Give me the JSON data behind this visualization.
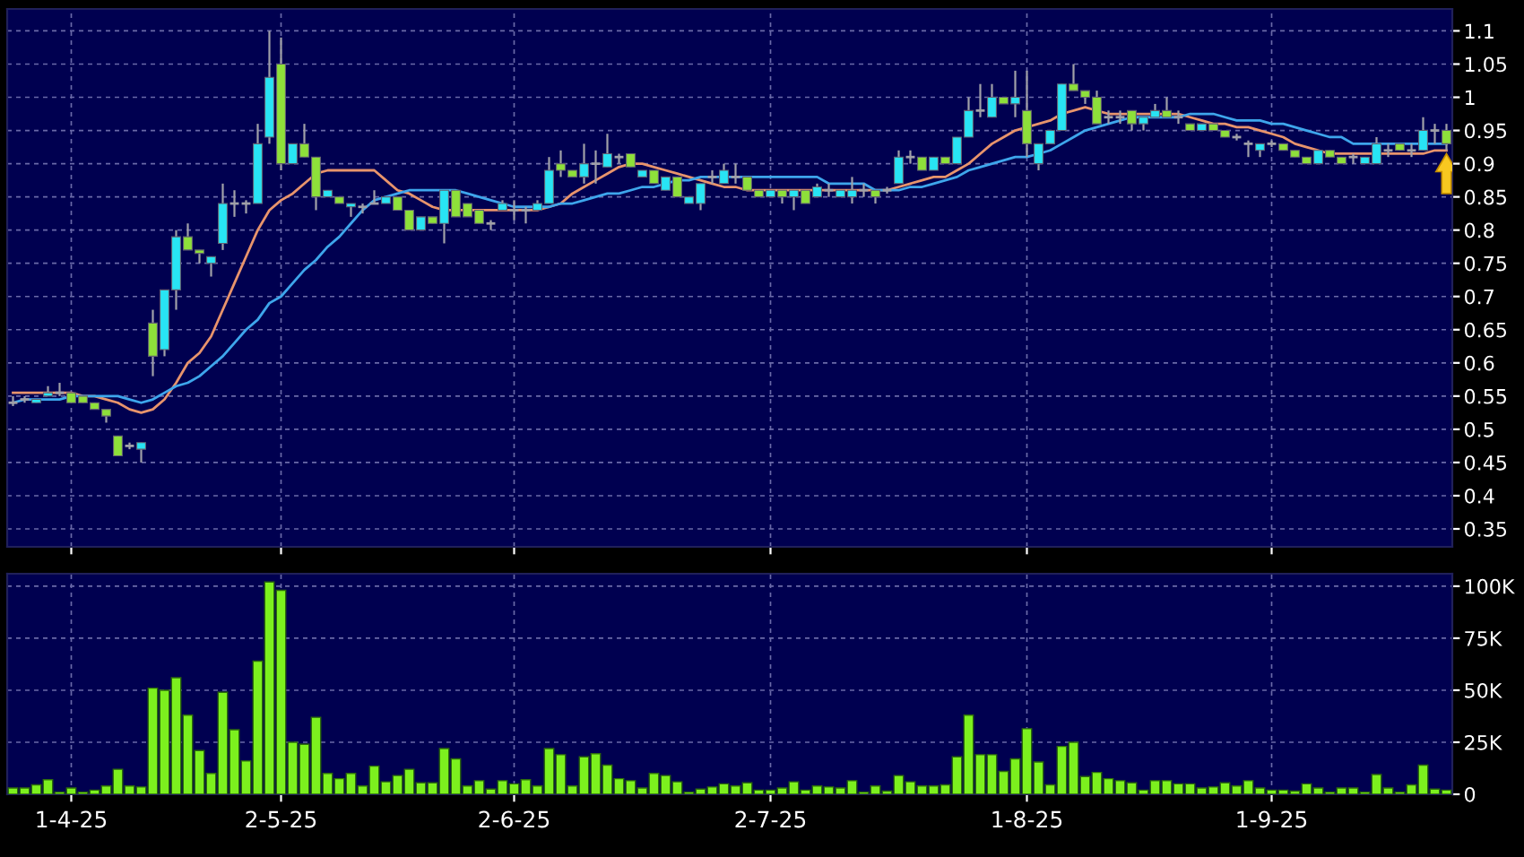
{
  "chart_data": [
    {
      "type": "candlestick",
      "ohlc": [
        [
          0.54,
          0.55,
          0.535,
          0.54
        ],
        [
          0.545,
          0.55,
          0.54,
          0.545
        ],
        [
          0.54,
          0.545,
          0.54,
          0.545
        ],
        [
          0.55,
          0.565,
          0.55,
          0.555
        ],
        [
          0.555,
          0.57,
          0.55,
          0.555
        ],
        [
          0.555,
          0.555,
          0.54,
          0.54
        ],
        [
          0.55,
          0.55,
          0.54,
          0.54
        ],
        [
          0.54,
          0.54,
          0.53,
          0.53
        ],
        [
          0.53,
          0.53,
          0.51,
          0.52
        ],
        [
          0.49,
          0.49,
          0.46,
          0.46
        ],
        [
          0.475,
          0.48,
          0.47,
          0.475
        ],
        [
          0.47,
          0.48,
          0.45,
          0.48
        ],
        [
          0.66,
          0.68,
          0.58,
          0.61
        ],
        [
          0.62,
          0.71,
          0.61,
          0.71
        ],
        [
          0.71,
          0.8,
          0.68,
          0.79
        ],
        [
          0.79,
          0.81,
          0.77,
          0.77
        ],
        [
          0.77,
          0.77,
          0.75,
          0.765
        ],
        [
          0.75,
          0.76,
          0.73,
          0.76
        ],
        [
          0.78,
          0.87,
          0.77,
          0.84
        ],
        [
          0.84,
          0.86,
          0.82,
          0.84
        ],
        [
          0.84,
          0.845,
          0.825,
          0.84
        ],
        [
          0.84,
          0.96,
          0.84,
          0.93
        ],
        [
          0.94,
          1.1,
          0.93,
          1.03
        ],
        [
          1.05,
          1.09,
          0.89,
          0.9
        ],
        [
          0.9,
          0.93,
          0.9,
          0.93
        ],
        [
          0.93,
          0.96,
          0.91,
          0.91
        ],
        [
          0.91,
          0.91,
          0.83,
          0.85
        ],
        [
          0.85,
          0.86,
          0.85,
          0.86
        ],
        [
          0.85,
          0.85,
          0.84,
          0.84
        ],
        [
          0.835,
          0.84,
          0.82,
          0.84
        ],
        [
          0.835,
          0.84,
          0.825,
          0.835
        ],
        [
          0.84,
          0.86,
          0.84,
          0.84
        ],
        [
          0.84,
          0.85,
          0.84,
          0.85
        ],
        [
          0.85,
          0.85,
          0.83,
          0.83
        ],
        [
          0.83,
          0.83,
          0.8,
          0.8
        ],
        [
          0.8,
          0.82,
          0.8,
          0.82
        ],
        [
          0.82,
          0.82,
          0.81,
          0.81
        ],
        [
          0.81,
          0.86,
          0.78,
          0.86
        ],
        [
          0.86,
          0.86,
          0.82,
          0.82
        ],
        [
          0.84,
          0.84,
          0.82,
          0.82
        ],
        [
          0.83,
          0.83,
          0.81,
          0.81
        ],
        [
          0.81,
          0.815,
          0.8,
          0.81
        ],
        [
          0.83,
          0.845,
          0.83,
          0.84
        ],
        [
          0.83,
          0.845,
          0.815,
          0.83
        ],
        [
          0.83,
          0.835,
          0.81,
          0.83
        ],
        [
          0.83,
          0.845,
          0.83,
          0.84
        ],
        [
          0.84,
          0.91,
          0.84,
          0.89
        ],
        [
          0.9,
          0.92,
          0.88,
          0.89
        ],
        [
          0.89,
          0.89,
          0.88,
          0.88
        ],
        [
          0.88,
          0.93,
          0.87,
          0.9
        ],
        [
          0.9,
          0.92,
          0.87,
          0.9
        ],
        [
          0.895,
          0.945,
          0.895,
          0.915
        ],
        [
          0.91,
          0.915,
          0.9,
          0.91
        ],
        [
          0.915,
          0.915,
          0.895,
          0.895
        ],
        [
          0.88,
          0.89,
          0.88,
          0.89
        ],
        [
          0.89,
          0.89,
          0.87,
          0.87
        ],
        [
          0.86,
          0.88,
          0.86,
          0.88
        ],
        [
          0.88,
          0.88,
          0.85,
          0.85
        ],
        [
          0.84,
          0.85,
          0.84,
          0.85
        ],
        [
          0.84,
          0.87,
          0.83,
          0.87
        ],
        [
          0.88,
          0.89,
          0.87,
          0.88
        ],
        [
          0.87,
          0.9,
          0.87,
          0.89
        ],
        [
          0.88,
          0.9,
          0.87,
          0.88
        ],
        [
          0.88,
          0.88,
          0.86,
          0.86
        ],
        [
          0.86,
          0.86,
          0.85,
          0.85
        ],
        [
          0.85,
          0.86,
          0.85,
          0.86
        ],
        [
          0.86,
          0.86,
          0.84,
          0.85
        ],
        [
          0.85,
          0.86,
          0.83,
          0.86
        ],
        [
          0.86,
          0.86,
          0.84,
          0.84
        ],
        [
          0.85,
          0.87,
          0.85,
          0.865
        ],
        [
          0.86,
          0.87,
          0.85,
          0.86
        ],
        [
          0.85,
          0.86,
          0.85,
          0.86
        ],
        [
          0.85,
          0.88,
          0.84,
          0.86
        ],
        [
          0.86,
          0.87,
          0.85,
          0.86
        ],
        [
          0.86,
          0.86,
          0.84,
          0.85
        ],
        [
          0.86,
          0.865,
          0.855,
          0.86
        ],
        [
          0.87,
          0.92,
          0.87,
          0.91
        ],
        [
          0.91,
          0.92,
          0.9,
          0.91
        ],
        [
          0.91,
          0.91,
          0.89,
          0.89
        ],
        [
          0.89,
          0.91,
          0.89,
          0.91
        ],
        [
          0.91,
          0.91,
          0.9,
          0.9
        ],
        [
          0.9,
          0.94,
          0.9,
          0.94
        ],
        [
          0.94,
          1.0,
          0.94,
          0.98
        ],
        [
          0.98,
          1.02,
          0.97,
          0.98
        ],
        [
          0.97,
          1.02,
          0.97,
          1.0
        ],
        [
          1.0,
          1.0,
          0.99,
          0.99
        ],
        [
          0.99,
          1.04,
          0.97,
          1.0
        ],
        [
          0.98,
          1.04,
          0.91,
          0.93
        ],
        [
          0.9,
          0.93,
          0.89,
          0.93
        ],
        [
          0.93,
          0.95,
          0.93,
          0.95
        ],
        [
          0.95,
          1.02,
          0.95,
          1.02
        ],
        [
          1.02,
          1.05,
          1.01,
          1.01
        ],
        [
          1.01,
          1.01,
          0.99,
          1.0
        ],
        [
          1.0,
          1.01,
          0.96,
          0.96
        ],
        [
          0.97,
          0.98,
          0.96,
          0.97
        ],
        [
          0.97,
          0.98,
          0.96,
          0.97
        ],
        [
          0.98,
          0.98,
          0.95,
          0.96
        ],
        [
          0.96,
          0.97,
          0.95,
          0.97
        ],
        [
          0.97,
          0.99,
          0.97,
          0.98
        ],
        [
          0.98,
          1.0,
          0.97,
          0.97
        ],
        [
          0.97,
          0.98,
          0.96,
          0.97
        ],
        [
          0.96,
          0.96,
          0.95,
          0.95
        ],
        [
          0.95,
          0.96,
          0.95,
          0.96
        ],
        [
          0.96,
          0.96,
          0.95,
          0.95
        ],
        [
          0.95,
          0.95,
          0.94,
          0.94
        ],
        [
          0.94,
          0.945,
          0.935,
          0.94
        ],
        [
          0.93,
          0.935,
          0.91,
          0.93
        ],
        [
          0.92,
          0.93,
          0.91,
          0.93
        ],
        [
          0.93,
          0.935,
          0.925,
          0.93
        ],
        [
          0.93,
          0.93,
          0.92,
          0.92
        ],
        [
          0.92,
          0.92,
          0.91,
          0.91
        ],
        [
          0.91,
          0.91,
          0.9,
          0.9
        ],
        [
          0.9,
          0.92,
          0.9,
          0.92
        ],
        [
          0.92,
          0.92,
          0.91,
          0.91
        ],
        [
          0.91,
          0.91,
          0.9,
          0.9
        ],
        [
          0.91,
          0.915,
          0.9,
          0.91
        ],
        [
          0.9,
          0.91,
          0.9,
          0.91
        ],
        [
          0.9,
          0.94,
          0.9,
          0.93
        ],
        [
          0.92,
          0.93,
          0.91,
          0.92
        ],
        [
          0.93,
          0.93,
          0.92,
          0.92
        ],
        [
          0.92,
          0.93,
          0.91,
          0.92
        ],
        [
          0.92,
          0.97,
          0.92,
          0.95
        ],
        [
          0.95,
          0.96,
          0.93,
          0.95
        ],
        [
          0.95,
          0.96,
          0.92,
          0.93
        ]
      ],
      "colors": [
        "#a0a0a8",
        "#a0a0a8",
        "#28e4f4",
        "#28e4f4",
        "#a0a0a8",
        "#8ee03a",
        "#8ee03a",
        "#8ee03a",
        "#8ee03a",
        "#8ee03a",
        "#a0a0a8",
        "#28e4f4",
        "#8ee03a",
        "#28e4f4",
        "#28e4f4",
        "#8ee03a",
        "#8ee03a",
        "#28e4f4",
        "#28e4f4",
        "#a0a0a8",
        "#a0a0a8",
        "#28e4f4",
        "#28e4f4",
        "#8ee03a",
        "#28e4f4",
        "#8ee03a",
        "#8ee03a",
        "#28e4f4",
        "#8ee03a",
        "#28e4f4",
        "#a0a0a8",
        "#a0a0a8",
        "#28e4f4",
        "#8ee03a",
        "#8ee03a",
        "#28e4f4",
        "#8ee03a",
        "#28e4f4",
        "#8ee03a",
        "#8ee03a",
        "#8ee03a",
        "#a0a0a8",
        "#28e4f4",
        "#a0a0a8",
        "#a0a0a8",
        "#28e4f4",
        "#28e4f4",
        "#8ee03a",
        "#8ee03a",
        "#28e4f4",
        "#a0a0a8",
        "#28e4f4",
        "#a0a0a8",
        "#8ee03a",
        "#28e4f4",
        "#8ee03a",
        "#28e4f4",
        "#8ee03a",
        "#28e4f4",
        "#28e4f4",
        "#a0a0a8",
        "#28e4f4",
        "#a0a0a8",
        "#8ee03a",
        "#8ee03a",
        "#28e4f4",
        "#8ee03a",
        "#28e4f4",
        "#8ee03a",
        "#28e4f4",
        "#a0a0a8",
        "#28e4f4",
        "#28e4f4",
        "#a0a0a8",
        "#8ee03a",
        "#a0a0a8",
        "#28e4f4",
        "#a0a0a8",
        "#8ee03a",
        "#28e4f4",
        "#8ee03a",
        "#28e4f4",
        "#28e4f4",
        "#a0a0a8",
        "#28e4f4",
        "#8ee03a",
        "#28e4f4",
        "#8ee03a",
        "#28e4f4",
        "#28e4f4",
        "#28e4f4",
        "#8ee03a",
        "#8ee03a",
        "#8ee03a",
        "#a0a0a8",
        "#a0a0a8",
        "#8ee03a",
        "#28e4f4",
        "#28e4f4",
        "#8ee03a",
        "#a0a0a8",
        "#8ee03a",
        "#28e4f4",
        "#8ee03a",
        "#8ee03a",
        "#a0a0a8",
        "#a0a0a8",
        "#28e4f4",
        "#a0a0a8",
        "#8ee03a",
        "#8ee03a",
        "#8ee03a",
        "#28e4f4",
        "#8ee03a",
        "#8ee03a",
        "#a0a0a8",
        "#28e4f4",
        "#28e4f4",
        "#a0a0a8",
        "#8ee03a",
        "#a0a0a8",
        "#28e4f4",
        "#a0a0a8",
        "#8ee03a"
      ],
      "series": [
        {
          "type": "line",
          "color": "#e8946c",
          "values": [
            0.555,
            0.555,
            0.555,
            0.555,
            0.555,
            0.555,
            0.55,
            0.55,
            0.545,
            0.54,
            0.53,
            0.525,
            0.53,
            0.545,
            0.57,
            0.6,
            0.615,
            0.64,
            0.68,
            0.72,
            0.76,
            0.8,
            0.83,
            0.845,
            0.855,
            0.87,
            0.885,
            0.89,
            0.89,
            0.89,
            0.89,
            0.89,
            0.875,
            0.86,
            0.855,
            0.845,
            0.835,
            0.83,
            0.83,
            0.83,
            0.83,
            0.83,
            0.83,
            0.83,
            0.83,
            0.83,
            0.835,
            0.84,
            0.855,
            0.865,
            0.875,
            0.885,
            0.895,
            0.9,
            0.9,
            0.895,
            0.89,
            0.885,
            0.88,
            0.875,
            0.87,
            0.865,
            0.865,
            0.86,
            0.86,
            0.86,
            0.86,
            0.86,
            0.86,
            0.86,
            0.86,
            0.86,
            0.86,
            0.86,
            0.86,
            0.86,
            0.865,
            0.87,
            0.875,
            0.88,
            0.88,
            0.89,
            0.9,
            0.915,
            0.93,
            0.94,
            0.95,
            0.955,
            0.96,
            0.965,
            0.975,
            0.98,
            0.985,
            0.98,
            0.975,
            0.975,
            0.975,
            0.975,
            0.975,
            0.975,
            0.975,
            0.97,
            0.965,
            0.96,
            0.96,
            0.955,
            0.955,
            0.95,
            0.945,
            0.94,
            0.93,
            0.925,
            0.92,
            0.915,
            0.915,
            0.915,
            0.915,
            0.915,
            0.915,
            0.915,
            0.915,
            0.915,
            0.92,
            0.92
          ]
        },
        {
          "type": "line",
          "color": "#3ea6ec",
          "values": [
            0.54,
            0.545,
            0.545,
            0.545,
            0.545,
            0.55,
            0.55,
            0.55,
            0.55,
            0.55,
            0.545,
            0.54,
            0.545,
            0.555,
            0.565,
            0.57,
            0.58,
            0.595,
            0.61,
            0.63,
            0.65,
            0.665,
            0.69,
            0.7,
            0.72,
            0.74,
            0.755,
            0.775,
            0.79,
            0.81,
            0.83,
            0.845,
            0.85,
            0.855,
            0.86,
            0.86,
            0.86,
            0.86,
            0.86,
            0.855,
            0.85,
            0.845,
            0.84,
            0.835,
            0.835,
            0.835,
            0.835,
            0.84,
            0.84,
            0.845,
            0.85,
            0.855,
            0.855,
            0.86,
            0.865,
            0.865,
            0.87,
            0.875,
            0.875,
            0.88,
            0.88,
            0.88,
            0.88,
            0.88,
            0.88,
            0.88,
            0.88,
            0.88,
            0.88,
            0.88,
            0.87,
            0.87,
            0.87,
            0.87,
            0.86,
            0.86,
            0.86,
            0.865,
            0.865,
            0.87,
            0.875,
            0.88,
            0.89,
            0.895,
            0.9,
            0.905,
            0.91,
            0.91,
            0.915,
            0.92,
            0.93,
            0.94,
            0.95,
            0.955,
            0.96,
            0.965,
            0.97,
            0.97,
            0.97,
            0.97,
            0.97,
            0.975,
            0.975,
            0.975,
            0.97,
            0.965,
            0.965,
            0.965,
            0.96,
            0.96,
            0.955,
            0.95,
            0.945,
            0.94,
            0.94,
            0.93,
            0.93,
            0.93,
            0.93,
            0.93,
            0.93,
            0.93,
            0.93,
            0.93
          ]
        }
      ],
      "ylim": [
        0.323,
        1.133
      ],
      "yticks": [
        0.35,
        0.4,
        0.45,
        0.5,
        0.55,
        0.6,
        0.65,
        0.7,
        0.75,
        0.8,
        0.85,
        0.9,
        0.95,
        1,
        1.05,
        1.1
      ],
      "grid": true,
      "tick_labels": "y"
    },
    {
      "type": "bar",
      "categories": [
        null,
        null,
        null,
        null,
        null,
        "1-4-25",
        null,
        null,
        null,
        null,
        null,
        null,
        null,
        null,
        null,
        null,
        null,
        null,
        null,
        null,
        null,
        null,
        null,
        "2-5-25",
        null,
        null,
        null,
        null,
        null,
        null,
        null,
        null,
        null,
        null,
        null,
        null,
        null,
        null,
        null,
        null,
        null,
        null,
        null,
        "2-6-25",
        null,
        null,
        null,
        null,
        null,
        null,
        null,
        null,
        null,
        null,
        null,
        null,
        null,
        null,
        null,
        null,
        null,
        null,
        null,
        null,
        null,
        "2-7-25",
        null,
        null,
        null,
        null,
        null,
        null,
        null,
        null,
        null,
        null,
        null,
        null,
        null,
        null,
        null,
        null,
        null,
        null,
        null,
        null,
        null,
        "1-8-25",
        null,
        null,
        null,
        null,
        null,
        null,
        null,
        null,
        null,
        null,
        null,
        null,
        null,
        null,
        null,
        null,
        null,
        null,
        null,
        null,
        "1-9-25",
        null,
        null,
        null,
        null,
        null,
        null,
        null,
        null,
        null,
        null,
        null,
        null,
        null,
        null,
        null
      ],
      "color": "#7cf01e",
      "values": [
        3000,
        3000,
        4500,
        7000,
        1000,
        3000,
        1000,
        2000,
        4000,
        12000,
        4000,
        3500,
        51000,
        50000,
        56000,
        38000,
        21000,
        10000,
        49000,
        31000,
        16000,
        64000,
        102000,
        98000,
        25000,
        24000,
        37000,
        10000,
        7500,
        10000,
        4000,
        13500,
        6000,
        9000,
        12000,
        5500,
        5500,
        22000,
        17000,
        4000,
        6500,
        2500,
        6500,
        5000,
        7000,
        4000,
        22000,
        19000,
        4000,
        18000,
        19500,
        14000,
        7500,
        6500,
        3000,
        10000,
        9000,
        6000,
        1000,
        2500,
        3500,
        5000,
        4000,
        5500,
        2000,
        2000,
        3000,
        6000,
        2000,
        4000,
        3500,
        3000,
        6500,
        1000,
        4000,
        1500,
        9000,
        6000,
        4000,
        4000,
        4500,
        18000,
        38000,
        19000,
        19000,
        11000,
        17000,
        31500,
        15500,
        4500,
        23000,
        25000,
        8500,
        10500,
        7500,
        6500,
        5500,
        2000,
        6500,
        6500,
        5000,
        5000,
        3000,
        3500,
        5500,
        4000,
        6500,
        3000,
        2000,
        2000,
        1500,
        5000,
        3000,
        1000,
        3000,
        3000,
        1000,
        9500,
        3000,
        1000,
        4500,
        14000,
        2500,
        2000
      ],
      "ylim": [
        0,
        106000
      ],
      "yticks": [
        0,
        {
          "value": 25000,
          "label": "25K"
        },
        {
          "value": 50000,
          "label": "50K"
        },
        {
          "value": 75000,
          "label": "75K"
        },
        {
          "value": 100000,
          "label": "100K"
        }
      ],
      "grid": true
    }
  ]
}
